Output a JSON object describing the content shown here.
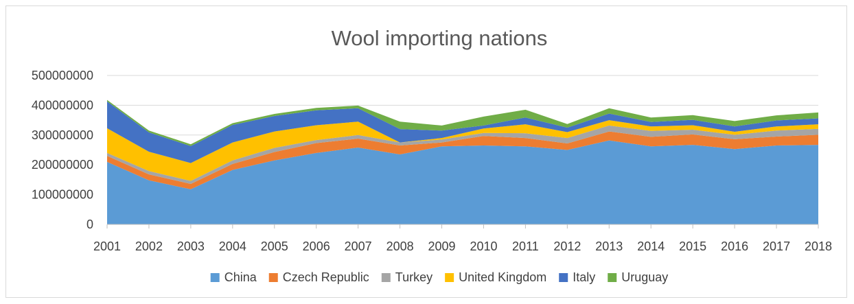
{
  "chart_data": {
    "type": "area",
    "stacked": true,
    "title": "Wool importing nations",
    "xlabel": "",
    "ylabel": "",
    "ylim": [
      0,
      500000000
    ],
    "yticks": [
      "0",
      "100000000",
      "200000000",
      "300000000",
      "400000000",
      "500000000"
    ],
    "grid": true,
    "legend_position": "bottom",
    "categories": [
      "2001",
      "2002",
      "2003",
      "2004",
      "2005",
      "2006",
      "2007",
      "2008",
      "2009",
      "2010",
      "2011",
      "2012",
      "2013",
      "2014",
      "2015",
      "2016",
      "2017",
      "2018"
    ],
    "series": [
      {
        "name": "China",
        "color": "#5B9BD5",
        "values": [
          210000000,
          148000000,
          118000000,
          183000000,
          215000000,
          240000000,
          258000000,
          235000000,
          262000000,
          265000000,
          262000000,
          250000000,
          282000000,
          262000000,
          267000000,
          253000000,
          265000000,
          267000000
        ]
      },
      {
        "name": "Czech Republic",
        "color": "#ED7D31",
        "values": [
          20000000,
          20000000,
          18000000,
          20000000,
          28000000,
          33000000,
          30000000,
          30000000,
          13000000,
          32000000,
          28000000,
          22000000,
          30000000,
          32000000,
          35000000,
          33000000,
          30000000,
          34000000
        ]
      },
      {
        "name": "Turkey",
        "color": "#A5A5A5",
        "values": [
          10000000,
          11000000,
          10000000,
          12000000,
          14000000,
          10000000,
          12000000,
          10000000,
          10000000,
          10000000,
          16000000,
          18000000,
          20000000,
          20000000,
          16000000,
          15000000,
          20000000,
          20000000
        ]
      },
      {
        "name": "United Kingdom",
        "color": "#FFC000",
        "values": [
          83000000,
          65000000,
          60000000,
          60000000,
          55000000,
          50000000,
          45000000,
          0,
          5000000,
          15000000,
          30000000,
          20000000,
          18000000,
          15000000,
          15000000,
          10000000,
          14000000,
          15000000
        ]
      },
      {
        "name": "Italy",
        "color": "#4472C4",
        "values": [
          90000000,
          65000000,
          57000000,
          59000000,
          52000000,
          50000000,
          45000000,
          45000000,
          25000000,
          10000000,
          23000000,
          15000000,
          22000000,
          15000000,
          18000000,
          18000000,
          20000000,
          20000000
        ]
      },
      {
        "name": "Uruguay",
        "color": "#70AD47",
        "values": [
          5000000,
          6000000,
          6000000,
          6000000,
          7000000,
          8000000,
          9000000,
          25000000,
          17000000,
          30000000,
          26000000,
          12000000,
          18000000,
          15000000,
          16000000,
          18000000,
          17000000,
          20000000
        ]
      }
    ]
  }
}
